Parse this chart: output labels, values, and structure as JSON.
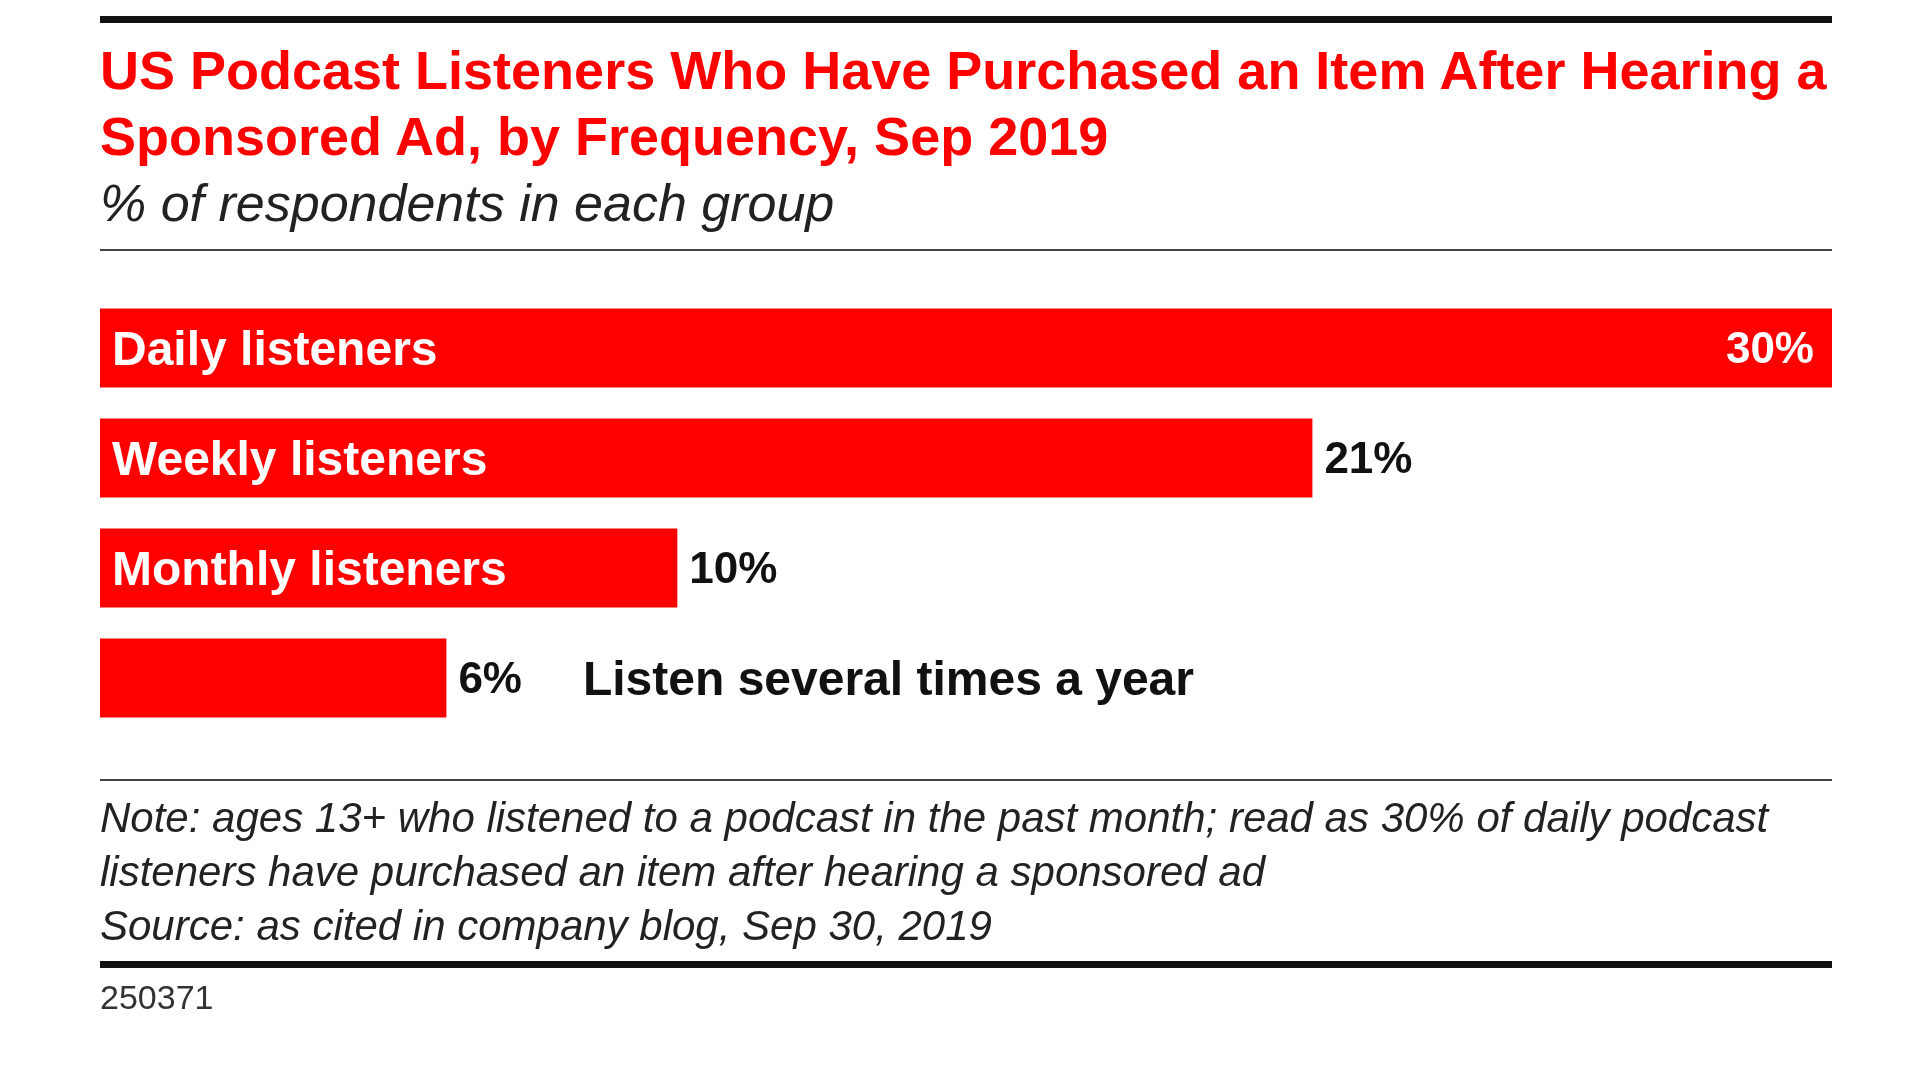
{
  "chart_data": {
    "type": "bar",
    "orientation": "horizontal",
    "title": "US Podcast Listeners Who Have Purchased an Item After Hearing a Sponsored Ad, by Frequency, Sep 2019",
    "subtitle": "% of respondents in each group",
    "categories": [
      "Daily listeners",
      "Weekly listeners",
      "Monthly listeners",
      "Listen several times a year"
    ],
    "values": [
      30,
      21,
      10,
      6
    ],
    "value_labels": [
      "30%",
      "21%",
      "10%",
      "6%"
    ],
    "color": "#ff0000",
    "annotations": [
      "Note: ages 13+ who listened to a podcast in the past month; read as 30% of daily podcast listeners have purchased an item after hearing a sponsored ad",
      "Source: as cited in company blog, Sep 30, 2019",
      "250371"
    ]
  }
}
